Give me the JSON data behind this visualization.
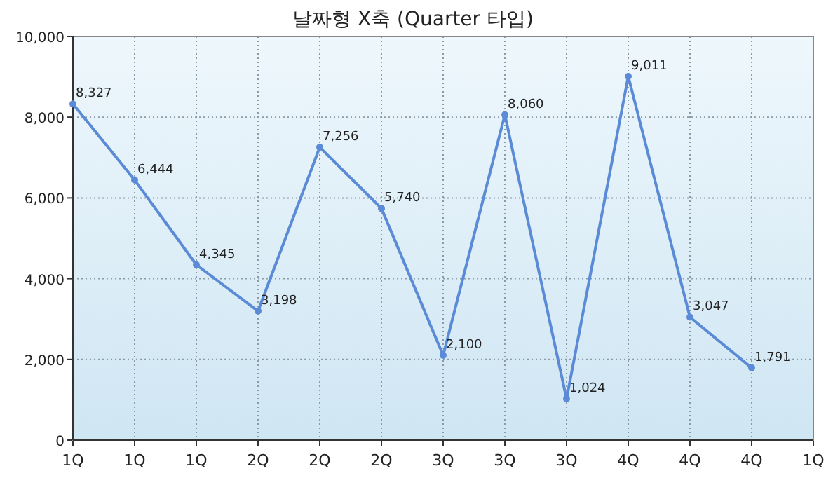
{
  "chart_data": {
    "type": "line",
    "title": "날짜형 X축 (Quarter 타입)",
    "categories": [
      "1Q",
      "1Q",
      "1Q",
      "2Q",
      "2Q",
      "2Q",
      "3Q",
      "3Q",
      "3Q",
      "4Q",
      "4Q",
      "4Q",
      "1Q"
    ],
    "series": [
      {
        "color": "#5b8bd6",
        "values": [
          8327,
          6444,
          4345,
          3198,
          7256,
          5740,
          2100,
          8060,
          1024,
          9011,
          3047,
          1791,
          null
        ],
        "value_labels": [
          "8,327",
          "6,444",
          "4,345",
          "3,198",
          "7,256",
          "5,740",
          "2,100",
          "8,060",
          "1,024",
          "9,011",
          "3,047",
          "1,791",
          null
        ]
      }
    ],
    "ylim": [
      0,
      10000
    ],
    "yticks": [
      {
        "value": 0,
        "label": "0"
      },
      {
        "value": 2000,
        "label": "2,000"
      },
      {
        "value": 4000,
        "label": "4,000"
      },
      {
        "value": 6000,
        "label": "6,000"
      },
      {
        "value": 8000,
        "label": "8,000"
      },
      {
        "value": 10000,
        "label": "10,000"
      }
    ],
    "grid": true,
    "marker": "circle",
    "line_style": "solid"
  }
}
